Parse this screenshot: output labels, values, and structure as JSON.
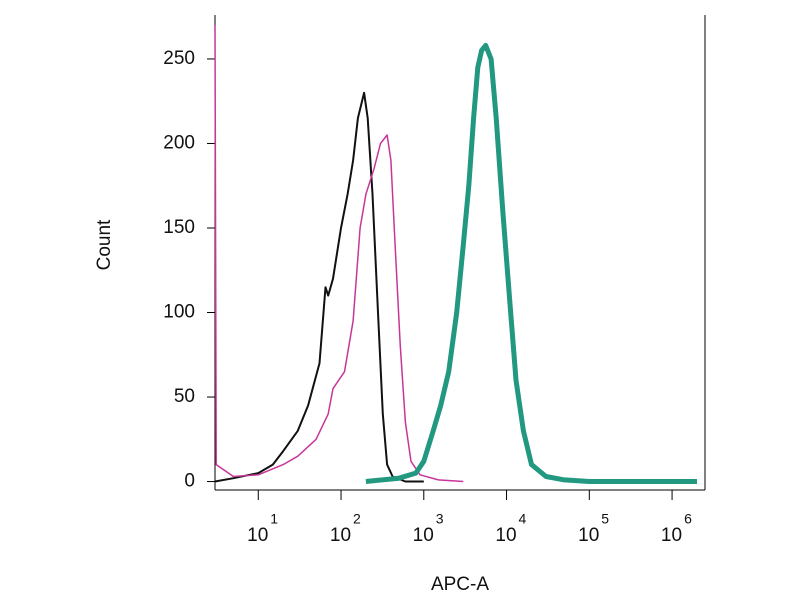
{
  "chart_data": {
    "type": "line",
    "xscale": "log",
    "xlabel": "APC-A",
    "ylabel": "Count",
    "xlim": [
      3,
      2500000
    ],
    "ylim": [
      -5,
      276
    ],
    "xticks": [
      {
        "value": 10,
        "label": "10",
        "sup": "1"
      },
      {
        "value": 100,
        "label": "10",
        "sup": "2"
      },
      {
        "value": 1000,
        "label": "10",
        "sup": "3"
      },
      {
        "value": 10000,
        "label": "10",
        "sup": "4"
      },
      {
        "value": 100000,
        "label": "10",
        "sup": "5"
      },
      {
        "value": 1000000,
        "label": "10",
        "sup": "6"
      }
    ],
    "yticks": [
      0,
      50,
      100,
      150,
      200,
      250
    ],
    "series": [
      {
        "color": "#111111",
        "width": 2,
        "x": [
          3,
          5,
          10,
          15,
          20,
          30,
          40,
          55,
          65,
          70,
          80,
          100,
          120,
          140,
          160,
          190,
          210,
          240,
          280,
          320,
          360,
          420,
          600,
          1000
        ],
        "values": [
          0,
          2,
          5,
          10,
          18,
          30,
          45,
          70,
          115,
          110,
          120,
          150,
          170,
          190,
          215,
          230,
          215,
          170,
          100,
          40,
          10,
          3,
          0,
          0
        ]
      },
      {
        "color": "#c8359a",
        "width": 1.5,
        "x": [
          3,
          3.1,
          5,
          10,
          20,
          30,
          50,
          70,
          80,
          110,
          140,
          170,
          200,
          250,
          300,
          360,
          400,
          450,
          520,
          600,
          700,
          900,
          1500,
          3000
        ],
        "values": [
          270,
          10,
          3,
          4,
          10,
          15,
          25,
          40,
          55,
          65,
          95,
          150,
          170,
          185,
          200,
          205,
          190,
          140,
          80,
          35,
          12,
          4,
          1,
          0
        ]
      },
      {
        "color": "#21987f",
        "width": 5,
        "x": [
          200,
          500,
          800,
          1000,
          1300,
          1600,
          2000,
          2500,
          3000,
          3500,
          4000,
          4500,
          5000,
          5600,
          6500,
          7500,
          9000,
          11000,
          13000,
          16000,
          20000,
          30000,
          50000,
          100000,
          2000000
        ],
        "values": [
          0,
          2,
          5,
          12,
          30,
          45,
          65,
          100,
          140,
          175,
          215,
          245,
          255,
          258,
          250,
          215,
          160,
          105,
          60,
          30,
          10,
          3,
          1,
          0,
          0
        ]
      }
    ]
  }
}
